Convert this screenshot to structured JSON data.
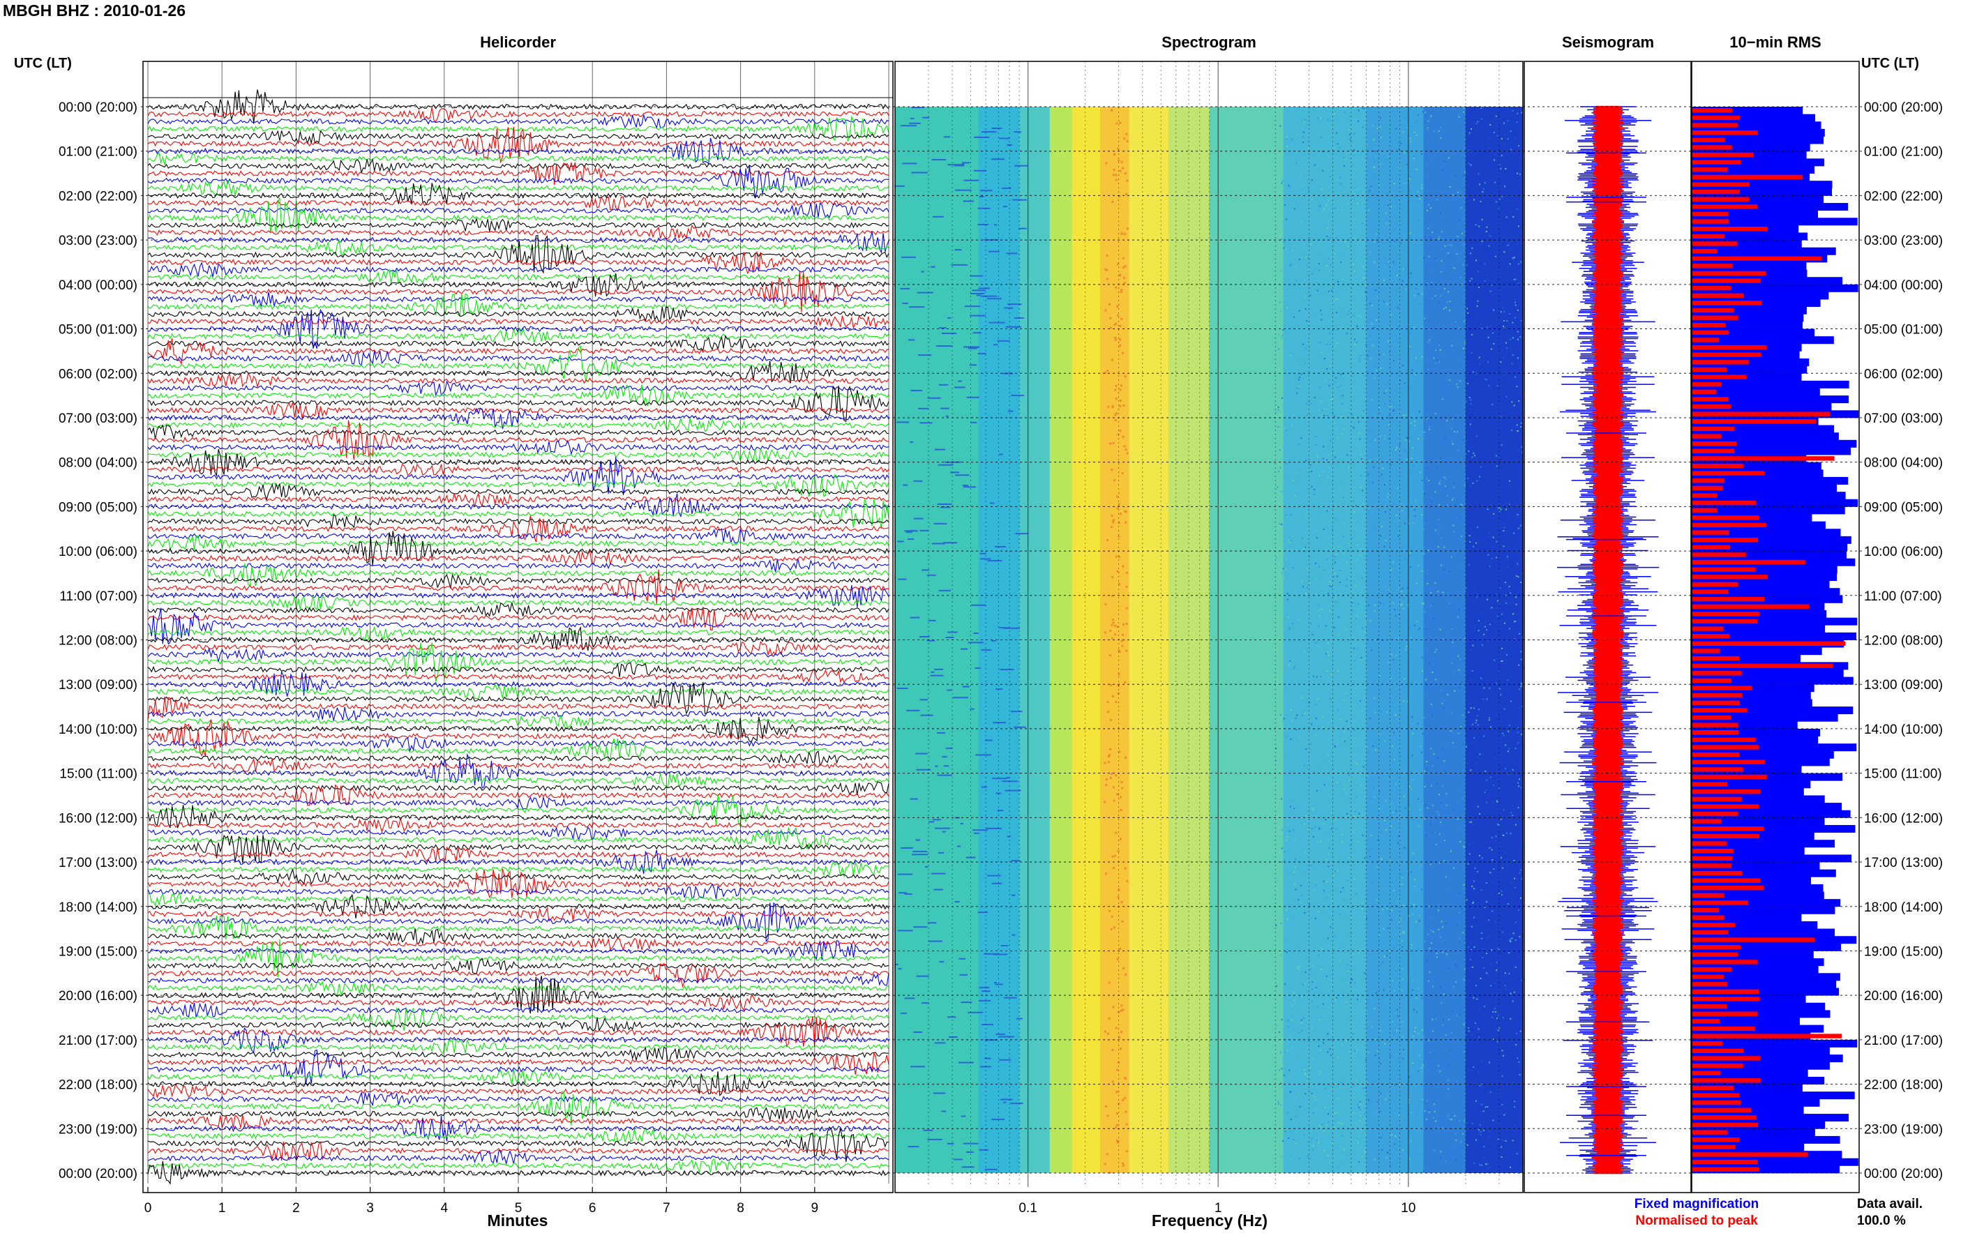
{
  "figure": {
    "title": "MBGH BHZ : 2010-01-26",
    "time_axis_label": "UTC (LT)"
  },
  "chart_data": [
    {
      "type": "line",
      "panel": "Helicorder",
      "title": "Helicorder",
      "xlabel": "Minutes",
      "x_ticks": [
        "0",
        "1",
        "2",
        "3",
        "4",
        "5",
        "6",
        "7",
        "8",
        "9"
      ],
      "xlim": [
        0,
        10
      ],
      "rows_per_hour": 6,
      "hours": 24,
      "trace_colors": [
        "#000000",
        "#ff0000",
        "#0000ff",
        "#00ee00"
      ],
      "grid": true
    },
    {
      "type": "heatmap",
      "panel": "Spectrogram",
      "title": "Spectrogram",
      "xlabel": "Frequency (Hz)",
      "x_scale": "log",
      "x_ticks": [
        "0.1",
        "1",
        "10"
      ],
      "xlim": [
        0.02,
        40
      ],
      "grid": true
    },
    {
      "type": "line",
      "panel": "Seismogram",
      "title": "Seismogram",
      "series": [
        {
          "name": "Fixed magnification",
          "color": "#0000ff"
        },
        {
          "name": "Normalised to peak",
          "color": "#ff0000"
        }
      ]
    },
    {
      "type": "bar",
      "panel": "10-min RMS",
      "title": "10−min RMS",
      "orientation": "horizontal",
      "n_bars": 144,
      "colors": {
        "fixed": "#0000ff",
        "normalised": "#ff0000"
      },
      "data_availability_label": "Data avail.",
      "data_availability_value": "100.0 %"
    }
  ],
  "time_labels": [
    "00:00 (20:00)",
    "01:00 (21:00)",
    "02:00 (22:00)",
    "03:00 (23:00)",
    "04:00 (00:00)",
    "05:00 (01:00)",
    "06:00 (02:00)",
    "07:00 (03:00)",
    "08:00 (04:00)",
    "09:00 (05:00)",
    "10:00 (06:00)",
    "11:00 (07:00)",
    "12:00 (08:00)",
    "13:00 (09:00)",
    "14:00 (10:00)",
    "15:00 (11:00)",
    "16:00 (12:00)",
    "17:00 (13:00)",
    "18:00 (14:00)",
    "19:00 (15:00)",
    "20:00 (16:00)",
    "21:00 (17:00)",
    "22:00 (18:00)",
    "23:00 (19:00)",
    "00:00 (20:00)"
  ],
  "legend": {
    "fixed_label": "Fixed magnification",
    "fixed_color": "#0000ff",
    "normalised_label": "Normalised to peak",
    "normalised_color": "#ff0000"
  }
}
